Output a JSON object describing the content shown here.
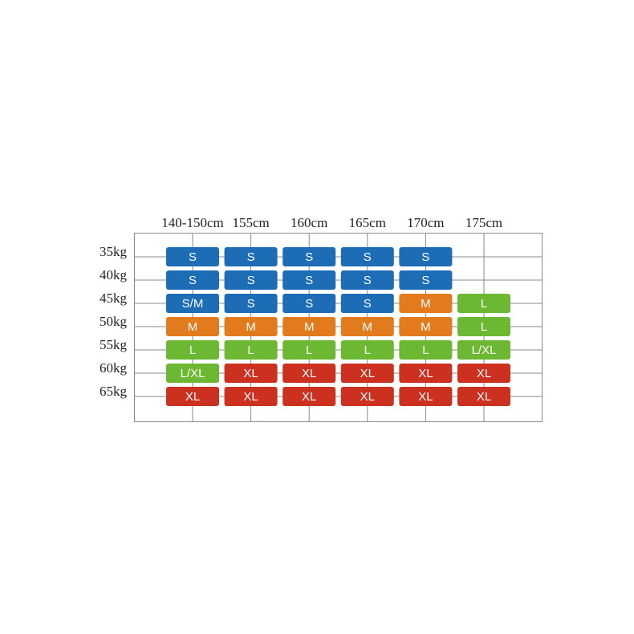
{
  "table": {
    "columns": [
      "140-150cm",
      "155cm",
      "160cm",
      "165cm",
      "170cm",
      "175cm"
    ],
    "rows": [
      {
        "label": "35kg",
        "cells": [
          {
            "label": "S",
            "color": "#1c6db5"
          },
          {
            "label": "S",
            "color": "#1c6db5"
          },
          {
            "label": "S",
            "color": "#1c6db5"
          },
          {
            "label": "S",
            "color": "#1c6db5"
          },
          {
            "label": "S",
            "color": "#1c6db5"
          },
          null
        ]
      },
      {
        "label": "40kg",
        "cells": [
          {
            "label": "S",
            "color": "#1c6db5"
          },
          {
            "label": "S",
            "color": "#1c6db5"
          },
          {
            "label": "S",
            "color": "#1c6db5"
          },
          {
            "label": "S",
            "color": "#1c6db5"
          },
          {
            "label": "S",
            "color": "#1c6db5"
          },
          null
        ]
      },
      {
        "label": "45kg",
        "cells": [
          {
            "label": "S/M",
            "color": "#1c6db5"
          },
          {
            "label": "S",
            "color": "#1c6db5"
          },
          {
            "label": "S",
            "color": "#1c6db5"
          },
          {
            "label": "S",
            "color": "#1c6db5"
          },
          {
            "label": "M",
            "color": "#e27a1e"
          },
          {
            "label": "L",
            "color": "#6cb832"
          }
        ]
      },
      {
        "label": "50kg",
        "cells": [
          {
            "label": "M",
            "color": "#e27a1e"
          },
          {
            "label": "M",
            "color": "#e27a1e"
          },
          {
            "label": "M",
            "color": "#e27a1e"
          },
          {
            "label": "M",
            "color": "#e27a1e"
          },
          {
            "label": "M",
            "color": "#e27a1e"
          },
          {
            "label": "L",
            "color": "#6cb832"
          }
        ]
      },
      {
        "label": "55kg",
        "cells": [
          {
            "label": "L",
            "color": "#6cb832"
          },
          {
            "label": "L",
            "color": "#6cb832"
          },
          {
            "label": "L",
            "color": "#6cb832"
          },
          {
            "label": "L",
            "color": "#6cb832"
          },
          {
            "label": "L",
            "color": "#6cb832"
          },
          {
            "label": "L/XL",
            "color": "#6cb832"
          }
        ]
      },
      {
        "label": "60kg",
        "cells": [
          {
            "label": "L/XL",
            "color": "#6cb832"
          },
          {
            "label": "XL",
            "color": "#cc3120"
          },
          {
            "label": "XL",
            "color": "#cc3120"
          },
          {
            "label": "XL",
            "color": "#cc3120"
          },
          {
            "label": "XL",
            "color": "#cc3120"
          },
          {
            "label": "XL",
            "color": "#cc3120"
          }
        ]
      },
      {
        "label": "65kg",
        "cells": [
          {
            "label": "XL",
            "color": "#cc3120"
          },
          {
            "label": "XL",
            "color": "#cc3120"
          },
          {
            "label": "XL",
            "color": "#cc3120"
          },
          {
            "label": "XL",
            "color": "#cc3120"
          },
          {
            "label": "XL",
            "color": "#cc3120"
          },
          {
            "label": "XL",
            "color": "#cc3120"
          }
        ]
      }
    ]
  }
}
